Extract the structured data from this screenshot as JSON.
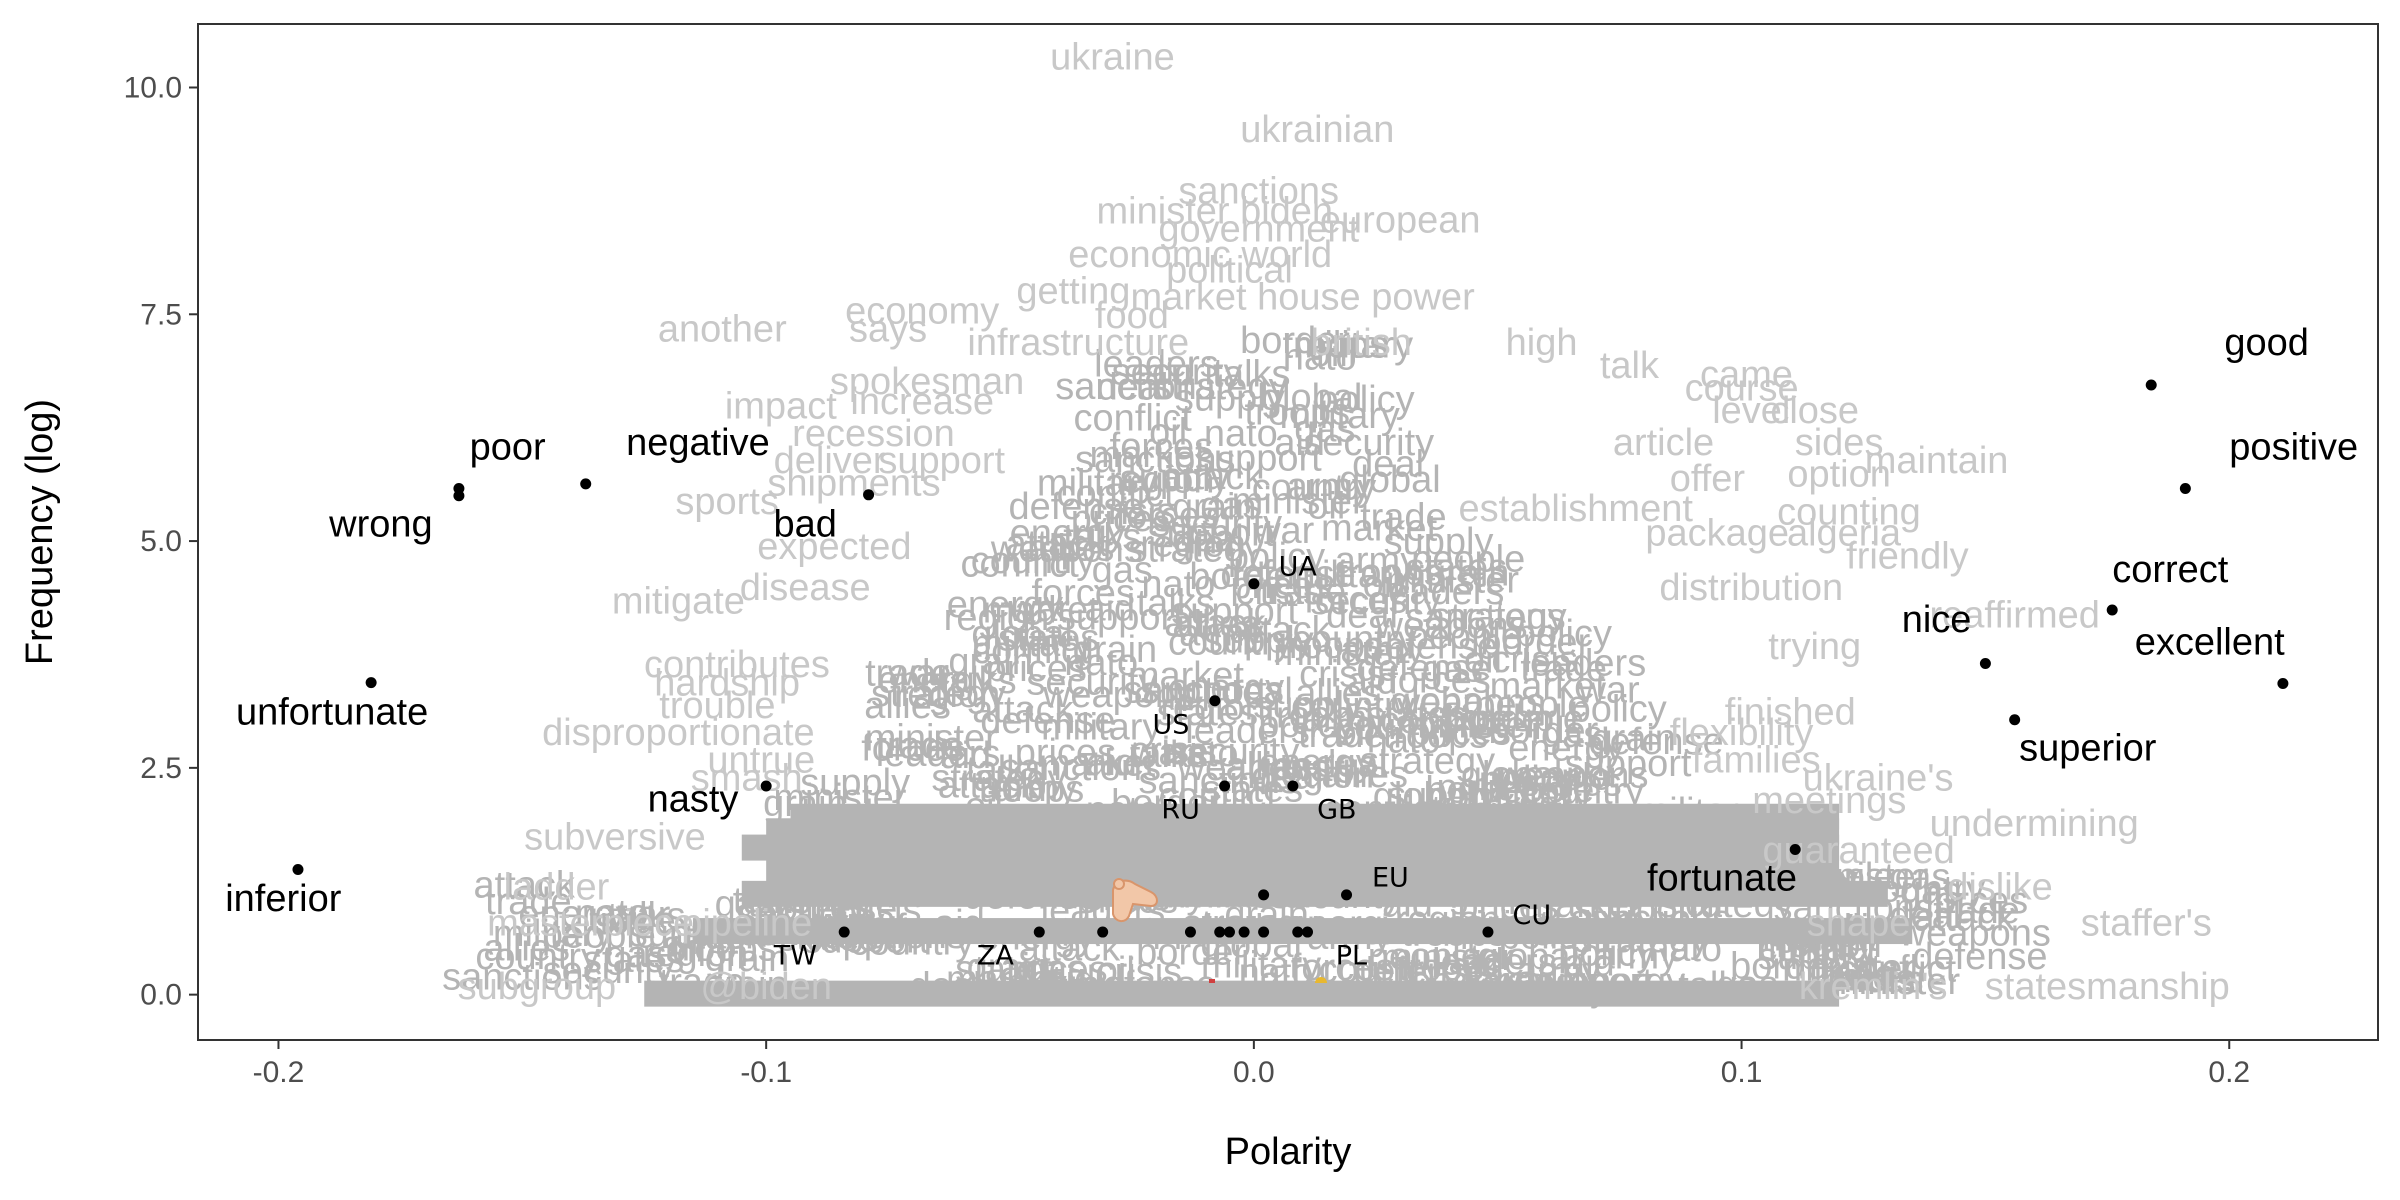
{
  "chart_data": {
    "type": "scatter",
    "xlabel": "Polarity",
    "ylabel": "Frequency (log)",
    "xlim": [
      -0.2165,
      0.2305
    ],
    "ylim": [
      -0.5,
      10.7
    ],
    "x_ticks": [
      -0.2,
      -0.1,
      0.0,
      0.1,
      0.2
    ],
    "x_tick_labels": [
      "-0.2",
      "-0.1",
      "0.0",
      "0.1",
      "0.2"
    ],
    "y_ticks": [
      0.0,
      2.5,
      5.0,
      7.5,
      10.0
    ],
    "y_tick_labels": [
      "0.0",
      "2.5",
      "5.0",
      "7.5",
      "10.0"
    ],
    "grid": false,
    "colors": {
      "point": "#000000",
      "background_words": "#c8c8c8",
      "cloud": "#b4b4b4",
      "panel_border": "#333333"
    },
    "labeled_words": [
      {
        "word": "good",
        "x": 0.184,
        "y": 6.72,
        "label_x": 0.199,
        "label_y": 7.05,
        "anchor": "start"
      },
      {
        "word": "positive",
        "x": 0.191,
        "y": 5.58,
        "label_x": 0.2,
        "label_y": 5.9,
        "anchor": "start"
      },
      {
        "word": "correct",
        "x": 0.176,
        "y": 4.24,
        "label_x": 0.176,
        "label_y": 4.55,
        "anchor": "start"
      },
      {
        "word": "nice",
        "x": 0.15,
        "y": 3.65,
        "label_x": 0.14,
        "label_y": 4.0,
        "anchor": "middle"
      },
      {
        "word": "excellent",
        "x": 0.211,
        "y": 3.43,
        "label_x": 0.196,
        "label_y": 3.75,
        "anchor": "middle"
      },
      {
        "word": "superior",
        "x": 0.156,
        "y": 3.03,
        "label_x": 0.171,
        "label_y": 2.58,
        "anchor": "middle"
      },
      {
        "word": "fortunate",
        "x": 0.111,
        "y": 1.6,
        "label_x": 0.096,
        "label_y": 1.15,
        "anchor": "middle"
      },
      {
        "word": "poor",
        "x": -0.163,
        "y": 5.58,
        "label_x": -0.153,
        "label_y": 5.9,
        "anchor": "middle"
      },
      {
        "word": "wrong",
        "x": -0.163,
        "y": 5.5,
        "label_x": -0.179,
        "label_y": 5.05,
        "anchor": "middle"
      },
      {
        "word": "negative",
        "x": -0.137,
        "y": 5.63,
        "label_x": -0.114,
        "label_y": 5.95,
        "anchor": "middle"
      },
      {
        "word": "bad",
        "x": -0.079,
        "y": 5.51,
        "label_x": -0.092,
        "label_y": 5.05,
        "anchor": "middle"
      },
      {
        "word": "unfortunate",
        "x": -0.181,
        "y": 3.44,
        "label_x": -0.189,
        "label_y": 2.98,
        "anchor": "middle"
      },
      {
        "word": "nasty",
        "x": -0.1,
        "y": 2.3,
        "label_x": -0.115,
        "label_y": 2.02,
        "anchor": "middle"
      },
      {
        "word": "inferior",
        "x": -0.196,
        "y": 1.38,
        "label_x": -0.199,
        "label_y": 0.92,
        "anchor": "middle"
      }
    ],
    "country_codes": [
      {
        "code": "UA",
        "x": 0.0,
        "y": 4.53,
        "label_x": 0.009,
        "label_y": 4.62,
        "anchor": "middle"
      },
      {
        "code": "US",
        "x": -0.008,
        "y": 3.24,
        "label_x": -0.017,
        "label_y": 2.88,
        "anchor": "middle"
      },
      {
        "code": "RU",
        "x": -0.006,
        "y": 2.3,
        "label_x": -0.015,
        "label_y": 1.94,
        "anchor": "middle"
      },
      {
        "code": "GB",
        "x": 0.008,
        "y": 2.3,
        "label_x": 0.017,
        "label_y": 1.94,
        "anchor": "middle"
      },
      {
        "code": "EU",
        "x": 0.019,
        "y": 1.1,
        "label_x": 0.028,
        "label_y": 1.19,
        "anchor": "middle"
      },
      {
        "code": "CU",
        "x": 0.048,
        "y": 0.69,
        "label_x": 0.057,
        "label_y": 0.78,
        "anchor": "middle"
      },
      {
        "code": "TW",
        "x": -0.084,
        "y": 0.69,
        "label_x": -0.094,
        "label_y": 0.33,
        "anchor": "middle"
      },
      {
        "code": "ZA",
        "x": -0.044,
        "y": 0.69,
        "label_x": -0.053,
        "label_y": 0.33,
        "anchor": "middle"
      },
      {
        "code": "PL",
        "x": 0.011,
        "y": 0.69,
        "label_x": 0.02,
        "label_y": 0.33,
        "anchor": "middle"
      }
    ],
    "unlabeled_points": [
      {
        "x": 0.002,
        "y": 1.1
      },
      {
        "x": -0.031,
        "y": 0.69
      },
      {
        "x": -0.013,
        "y": 0.69
      },
      {
        "x": -0.007,
        "y": 0.69
      },
      {
        "x": -0.005,
        "y": 0.69
      },
      {
        "x": -0.002,
        "y": 0.69
      },
      {
        "x": 0.002,
        "y": 0.69
      },
      {
        "x": 0.009,
        "y": 0.69
      }
    ],
    "background_words": [
      {
        "word": "ukraine",
        "x": -0.029,
        "y": 10.2,
        "anchor": "middle"
      },
      {
        "word": "ukrainian",
        "x": 0.013,
        "y": 9.4,
        "anchor": "middle"
      },
      {
        "word": "sanctions",
        "x": 0.001,
        "y": 8.72,
        "anchor": "middle"
      },
      {
        "word": "minister biden",
        "x": -0.008,
        "y": 8.5,
        "anchor": "middle"
      },
      {
        "word": "government",
        "x": 0.001,
        "y": 8.3,
        "anchor": "middle"
      },
      {
        "word": "european",
        "x": 0.03,
        "y": 8.4,
        "anchor": "middle"
      },
      {
        "word": "economic world",
        "x": -0.011,
        "y": 8.02,
        "anchor": "middle"
      },
      {
        "word": "political",
        "x": -0.005,
        "y": 7.85,
        "anchor": "middle"
      },
      {
        "word": "getting",
        "x": -0.037,
        "y": 7.62,
        "anchor": "middle"
      },
      {
        "word": "market house power",
        "x": 0.01,
        "y": 7.55,
        "anchor": "middle"
      },
      {
        "word": "economy",
        "x": -0.068,
        "y": 7.4,
        "anchor": "middle"
      },
      {
        "word": "says",
        "x": -0.075,
        "y": 7.2,
        "anchor": "middle"
      },
      {
        "word": "food",
        "x": -0.025,
        "y": 7.35,
        "anchor": "middle"
      },
      {
        "word": "british",
        "x": 0.022,
        "y": 7.05,
        "anchor": "middle"
      },
      {
        "word": "infrastructure",
        "x": -0.036,
        "y": 7.05,
        "anchor": "middle"
      },
      {
        "word": "high",
        "x": 0.059,
        "y": 7.05,
        "anchor": "middle"
      },
      {
        "word": "talk",
        "x": 0.077,
        "y": 6.8,
        "anchor": "middle"
      },
      {
        "word": "another",
        "x": -0.109,
        "y": 7.2,
        "anchor": "middle"
      },
      {
        "word": "spokesman",
        "x": -0.067,
        "y": 6.62,
        "anchor": "middle"
      },
      {
        "word": "came",
        "x": 0.101,
        "y": 6.7,
        "anchor": "middle"
      },
      {
        "word": "course",
        "x": 0.1,
        "y": 6.55,
        "anchor": "middle"
      },
      {
        "word": "close",
        "x": 0.115,
        "y": 6.3,
        "anchor": "middle"
      },
      {
        "word": "level",
        "x": 0.102,
        "y": 6.3,
        "anchor": "middle"
      },
      {
        "word": "impact",
        "x": -0.097,
        "y": 6.35,
        "anchor": "middle"
      },
      {
        "word": "increase",
        "x": -0.068,
        "y": 6.4,
        "anchor": "middle"
      },
      {
        "word": "recession",
        "x": -0.078,
        "y": 6.05,
        "anchor": "middle"
      },
      {
        "word": "sides",
        "x": 0.12,
        "y": 5.95,
        "anchor": "middle"
      },
      {
        "word": "maintain",
        "x": 0.14,
        "y": 5.75,
        "anchor": "middle"
      },
      {
        "word": "article",
        "x": 0.084,
        "y": 5.95,
        "anchor": "middle"
      },
      {
        "word": "deliver",
        "x": -0.087,
        "y": 5.75,
        "anchor": "middle"
      },
      {
        "word": "support",
        "x": -0.064,
        "y": 5.75,
        "anchor": "middle"
      },
      {
        "word": "shipments",
        "x": -0.082,
        "y": 5.5,
        "anchor": "middle"
      },
      {
        "word": "option",
        "x": 0.12,
        "y": 5.6,
        "anchor": "middle"
      },
      {
        "word": "offer",
        "x": 0.093,
        "y": 5.55,
        "anchor": "middle"
      },
      {
        "word": "sports",
        "x": -0.108,
        "y": 5.3,
        "anchor": "middle"
      },
      {
        "word": "counting",
        "x": 0.122,
        "y": 5.18,
        "anchor": "middle"
      },
      {
        "word": "establishment",
        "x": 0.066,
        "y": 5.22,
        "anchor": "middle"
      },
      {
        "word": "expected",
        "x": -0.086,
        "y": 4.8,
        "anchor": "middle"
      },
      {
        "word": "algeria",
        "x": 0.121,
        "y": 4.95,
        "anchor": "middle"
      },
      {
        "word": "package",
        "x": 0.095,
        "y": 4.95,
        "anchor": "middle"
      },
      {
        "word": "friendly",
        "x": 0.134,
        "y": 4.7,
        "anchor": "middle"
      },
      {
        "word": "mitigate",
        "x": -0.118,
        "y": 4.2,
        "anchor": "middle"
      },
      {
        "word": "distribution",
        "x": 0.102,
        "y": 4.35,
        "anchor": "middle"
      },
      {
        "word": "disease",
        "x": -0.092,
        "y": 4.35,
        "anchor": "middle"
      },
      {
        "word": "reaffirmed",
        "x": 0.156,
        "y": 4.05,
        "anchor": "middle"
      },
      {
        "word": "contributes",
        "x": -0.106,
        "y": 3.5,
        "anchor": "middle"
      },
      {
        "word": "trying",
        "x": 0.115,
        "y": 3.7,
        "anchor": "middle"
      },
      {
        "word": "trouble",
        "x": -0.11,
        "y": 3.05,
        "anchor": "middle"
      },
      {
        "word": "hardship",
        "x": -0.108,
        "y": 3.3,
        "anchor": "middle"
      },
      {
        "word": "disproportionate",
        "x": -0.118,
        "y": 2.75,
        "anchor": "middle"
      },
      {
        "word": "untrue",
        "x": -0.101,
        "y": 2.45,
        "anchor": "middle"
      },
      {
        "word": "smash",
        "x": -0.104,
        "y": 2.25,
        "anchor": "middle"
      },
      {
        "word": "finished",
        "x": 0.11,
        "y": 2.98,
        "anchor": "middle"
      },
      {
        "word": "flexibility",
        "x": 0.1,
        "y": 2.75,
        "anchor": "middle"
      },
      {
        "word": "families",
        "x": 0.103,
        "y": 2.45,
        "anchor": "middle"
      },
      {
        "word": "ukraine's",
        "x": 0.128,
        "y": 2.25,
        "anchor": "middle"
      },
      {
        "word": "meetings",
        "x": 0.118,
        "y": 2.0,
        "anchor": "middle"
      },
      {
        "word": "subversive",
        "x": -0.131,
        "y": 1.6,
        "anchor": "middle"
      },
      {
        "word": "undermining",
        "x": 0.16,
        "y": 1.75,
        "anchor": "middle"
      },
      {
        "word": "guaranteed",
        "x": 0.124,
        "y": 1.45,
        "anchor": "middle"
      },
      {
        "word": "ladder",
        "x": -0.143,
        "y": 1.05,
        "anchor": "middle"
      },
      {
        "word": "dislike",
        "x": 0.153,
        "y": 1.05,
        "anchor": "middle"
      },
      {
        "word": "masterpiece",
        "x": -0.136,
        "y": 0.65,
        "anchor": "middle"
      },
      {
        "word": "pipeline",
        "x": -0.104,
        "y": 0.65,
        "anchor": "middle"
      },
      {
        "word": "staffer's",
        "x": 0.183,
        "y": 0.65,
        "anchor": "middle"
      },
      {
        "word": "shape",
        "x": 0.124,
        "y": 0.65,
        "anchor": "middle"
      },
      {
        "word": "subgroup",
        "x": -0.147,
        "y": -0.05,
        "anchor": "middle"
      },
      {
        "word": "@biden",
        "x": -0.1,
        "y": -0.05,
        "anchor": "middle"
      },
      {
        "word": "statesmanship",
        "x": 0.175,
        "y": -0.05,
        "anchor": "middle"
      },
      {
        "word": "kremlin's",
        "x": 0.127,
        "y": -0.05,
        "anchor": "middle"
      }
    ],
    "cloud_seeds": [
      "sanctions",
      "deal",
      "support",
      "market",
      "energy",
      "war",
      "talks",
      "aid",
      "security",
      "forces",
      "crisis",
      "trade",
      "prices",
      "leaders",
      "nato",
      "oil",
      "gas",
      "grain",
      "defense",
      "minister",
      "border",
      "troops",
      "military",
      "conflict",
      "army",
      "country",
      "states",
      "people",
      "policy",
      "global",
      "supply",
      "attack",
      "region",
      "allies",
      "weapons",
      "strategy"
    ]
  }
}
